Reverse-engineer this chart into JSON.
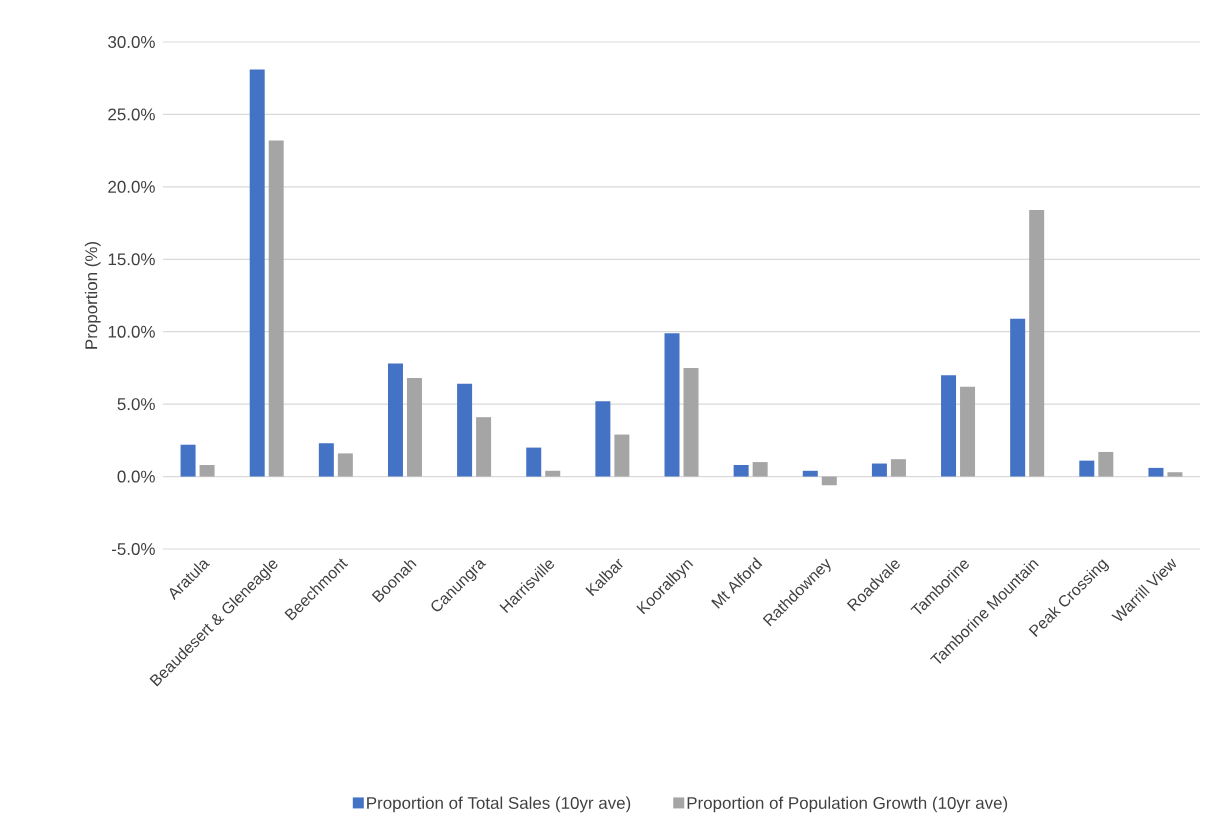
{
  "chart_data": {
    "type": "bar",
    "ylabel": "Proportion (%)",
    "categories": [
      "Aratula",
      "Beaudesert & Gleneagle",
      "Beechmont",
      "Boonah",
      "Canungra",
      "Harrisville",
      "Kalbar",
      "Kooralbyn",
      "Mt Alford",
      "Rathdowney",
      "Roadvale",
      "Tamborine",
      "Tamborine Mountain",
      "Peak Crossing",
      "Warrill View"
    ],
    "series": [
      {
        "name": "Proportion of Total Sales (10yr ave)",
        "color": "#4472c4",
        "values": [
          2.2,
          28.1,
          2.3,
          7.8,
          6.4,
          2.0,
          5.2,
          9.9,
          0.8,
          0.4,
          0.9,
          7.0,
          10.9,
          1.1,
          0.6
        ]
      },
      {
        "name": "Proportion of Population Growth (10yr ave)",
        "color": "#a5a5a5",
        "values": [
          0.8,
          23.2,
          1.6,
          6.8,
          4.1,
          0.4,
          2.9,
          7.5,
          1.0,
          -0.6,
          1.2,
          6.2,
          18.4,
          1.7,
          0.3
        ]
      }
    ],
    "ylim": [
      -5,
      30
    ],
    "yticks": [
      {
        "value": -5,
        "label": "-5.0%"
      },
      {
        "value": 0,
        "label": "0.0%"
      },
      {
        "value": 5,
        "label": "5.0%"
      },
      {
        "value": 10,
        "label": "10.0%"
      },
      {
        "value": 15,
        "label": "15.0%"
      },
      {
        "value": 20,
        "label": "20.0%"
      },
      {
        "value": 25,
        "label": "25.0%"
      },
      {
        "value": 30,
        "label": "30.0%"
      }
    ],
    "grid": "y",
    "legend": "bottom"
  }
}
